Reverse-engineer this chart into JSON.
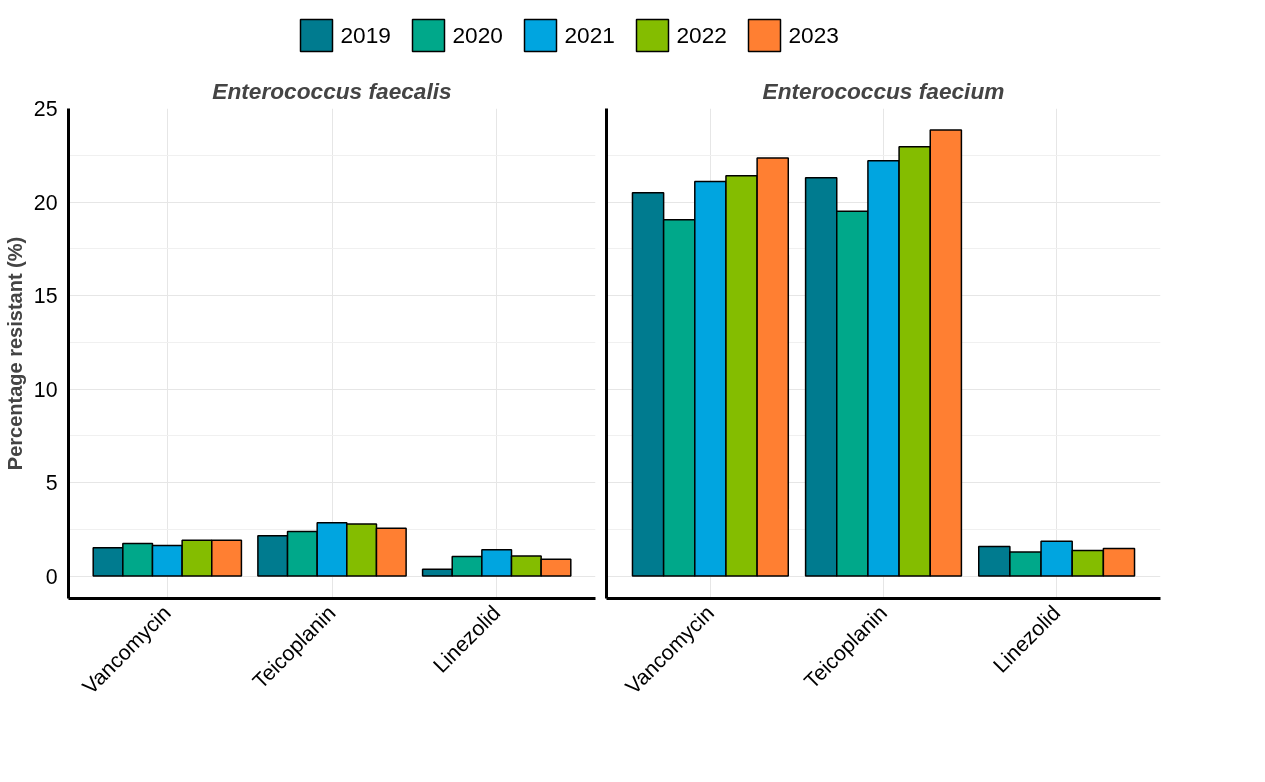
{
  "chart_data": [
    {
      "type": "bar",
      "title": "Enterococcus faecalis",
      "ylabel": "Percentage resistant (%)",
      "categories": [
        "Vancomycin",
        "Teicoplanin",
        "Linezolid"
      ],
      "ylim": [
        -1.2,
        25
      ],
      "yticks": [
        0,
        5,
        10,
        15,
        20,
        25
      ],
      "grid": true,
      "legend": "top",
      "series": [
        {
          "name": "2019",
          "color": "#007b8f",
          "values": [
            1.52,
            2.15,
            0.37
          ]
        },
        {
          "name": "2020",
          "color": "#00a88a",
          "values": [
            1.74,
            2.38,
            1.05
          ]
        },
        {
          "name": "2021",
          "color": "#00a5e0",
          "values": [
            1.64,
            2.85,
            1.41
          ]
        },
        {
          "name": "2022",
          "color": "#84bd00",
          "values": [
            1.91,
            2.79,
            1.07
          ]
        },
        {
          "name": "2023",
          "color": "#ff7f32",
          "values": [
            1.91,
            2.56,
            0.9
          ]
        }
      ]
    },
    {
      "type": "bar",
      "title": "Enterococcus faecium",
      "categories": [
        "Vancomycin",
        "Teicoplanin",
        "Linezolid"
      ],
      "ylim": [
        -1.2,
        25
      ],
      "yticks": [
        0,
        5,
        10,
        15,
        20,
        25
      ],
      "grid": true,
      "tick_labels": "x",
      "series": [
        {
          "color": "#007b8f",
          "values": [
            20.5,
            21.3,
            1.58
          ]
        },
        {
          "color": "#00a88a",
          "values": [
            19.05,
            19.5,
            1.29
          ]
        },
        {
          "color": "#00a5e0",
          "values": [
            21.1,
            22.2,
            1.86
          ]
        },
        {
          "color": "#84bd00",
          "values": [
            21.4,
            22.95,
            1.37
          ]
        },
        {
          "color": "#ff7f32",
          "values": [
            22.35,
            23.85,
            1.47
          ]
        }
      ]
    }
  ]
}
